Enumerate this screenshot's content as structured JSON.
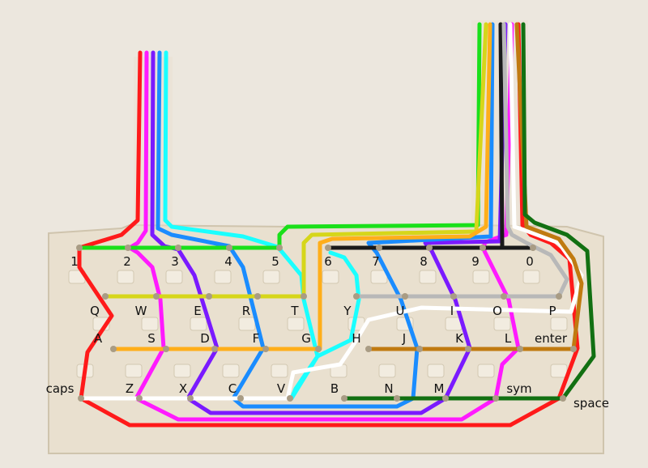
{
  "keys": {
    "r1": [
      "1",
      "2",
      "3",
      "4",
      "5",
      "6",
      "7",
      "8",
      "9",
      "0"
    ],
    "r2": [
      "Q",
      "W",
      "E",
      "R",
      "T",
      "Y",
      "U",
      "I",
      "O",
      "P"
    ],
    "r3": [
      "A",
      "S",
      "D",
      "F",
      "G",
      "H",
      "J",
      "K",
      "L",
      "enter"
    ],
    "r4": [
      "caps",
      "Z",
      "X",
      "C",
      "V",
      "B",
      "N",
      "M",
      "sym",
      "space"
    ]
  },
  "wire_colors": {
    "red": "#ff1a1a",
    "magenta": "#ff1aff",
    "purple": "#7a1aff",
    "blue": "#1a8cff",
    "cyan": "#1affff",
    "green": "#1ae01a",
    "yellow": "#d6d61a",
    "orange": "#ffae1a",
    "black": "#1a1a1a",
    "gray": "#b8b8b8",
    "white": "#ffffff",
    "brown": "#c07a10",
    "darkgreen": "#127012"
  },
  "colors": {
    "background": "#ece7de",
    "membrane": "#e9e0cf",
    "membrane_edge": "#cfc4ad"
  }
}
